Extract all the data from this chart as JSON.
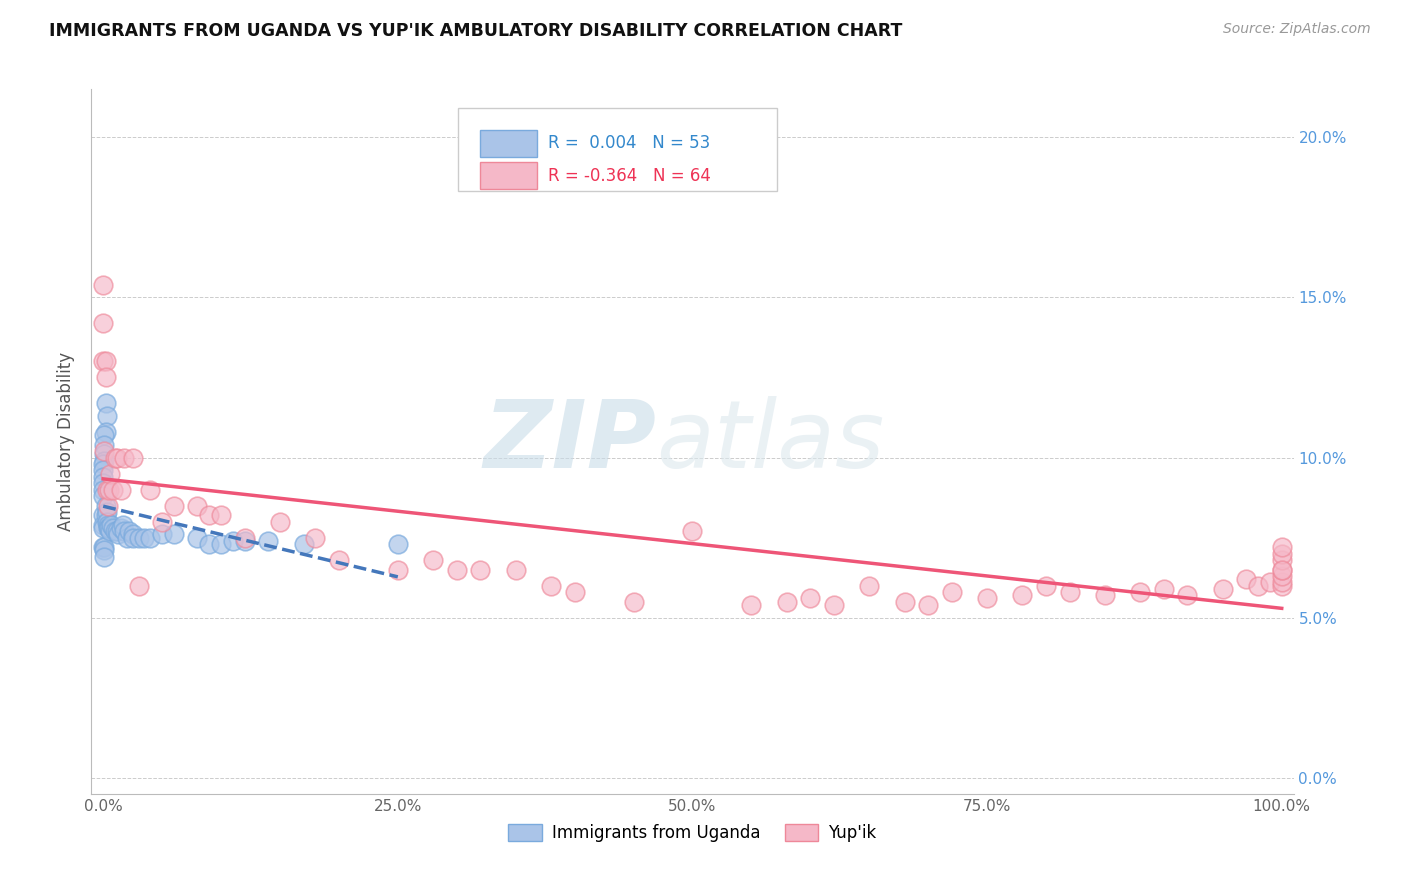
{
  "title": "IMMIGRANTS FROM UGANDA VS YUP'IK AMBULATORY DISABILITY CORRELATION CHART",
  "source": "Source: ZipAtlas.com",
  "ylabel": "Ambulatory Disability",
  "legend_labels": [
    "Immigrants from Uganda",
    "Yup'ik"
  ],
  "r_uganda": 0.004,
  "n_uganda": 53,
  "r_yupik": -0.364,
  "n_yupik": 64,
  "xlim": [
    -0.01,
    1.01
  ],
  "ylim": [
    -0.005,
    0.215
  ],
  "x_ticks": [
    0.0,
    0.25,
    0.5,
    0.75,
    1.0
  ],
  "x_tick_labels": [
    "0.0%",
    "25.0%",
    "50.0%",
    "75.0%",
    "100.0%"
  ],
  "y_ticks": [
    0.0,
    0.05,
    0.1,
    0.15,
    0.2
  ],
  "y_tick_labels_right": [
    "0.0%",
    "5.0%",
    "10.0%",
    "15.0%",
    "20.0%"
  ],
  "color_uganda_fill": "#aac4e8",
  "color_yupik_fill": "#f5b8c8",
  "color_uganda_edge": "#7aaadd",
  "color_yupik_edge": "#ee8899",
  "color_uganda_line": "#4477bb",
  "color_yupik_line": "#ee5577",
  "color_r_uganda": "#3388cc",
  "color_r_yupik": "#ee3355",
  "color_n_uganda": "#3388cc",
  "color_n_yupik": "#ee3355",
  "watermark_zip_color": "#d8e8f0",
  "watermark_atlas_color": "#e0e8ee",
  "scatter_uganda_x": [
    0.002,
    0.003,
    0.002,
    0.001,
    0.001,
    0.001,
    0.001,
    0.0,
    0.0,
    0.0,
    0.0,
    0.0,
    0.0,
    0.0,
    0.0,
    0.0,
    0.0,
    0.001,
    0.001,
    0.001,
    0.002,
    0.002,
    0.003,
    0.003,
    0.004,
    0.004,
    0.005,
    0.006,
    0.007,
    0.008,
    0.01,
    0.012,
    0.013,
    0.015,
    0.017,
    0.018,
    0.02,
    0.022,
    0.025,
    0.025,
    0.03,
    0.035,
    0.04,
    0.05,
    0.06,
    0.08,
    0.09,
    0.1,
    0.11,
    0.12,
    0.14,
    0.17,
    0.25
  ],
  "scatter_uganda_y": [
    0.117,
    0.113,
    0.108,
    0.107,
    0.104,
    0.101,
    0.099,
    0.098,
    0.096,
    0.094,
    0.092,
    0.09,
    0.088,
    0.082,
    0.079,
    0.078,
    0.072,
    0.072,
    0.071,
    0.069,
    0.085,
    0.082,
    0.083,
    0.08,
    0.079,
    0.078,
    0.078,
    0.077,
    0.079,
    0.078,
    0.077,
    0.077,
    0.076,
    0.078,
    0.079,
    0.077,
    0.075,
    0.077,
    0.076,
    0.075,
    0.075,
    0.075,
    0.075,
    0.076,
    0.076,
    0.075,
    0.073,
    0.073,
    0.074,
    0.074,
    0.074,
    0.073,
    0.073
  ],
  "scatter_yupik_x": [
    0.0,
    0.0,
    0.0,
    0.001,
    0.002,
    0.002,
    0.003,
    0.004,
    0.005,
    0.006,
    0.008,
    0.01,
    0.012,
    0.015,
    0.018,
    0.025,
    0.03,
    0.04,
    0.05,
    0.06,
    0.08,
    0.09,
    0.1,
    0.12,
    0.15,
    0.18,
    0.2,
    0.25,
    0.28,
    0.3,
    0.32,
    0.35,
    0.38,
    0.4,
    0.45,
    0.5,
    0.55,
    0.58,
    0.6,
    0.62,
    0.65,
    0.68,
    0.7,
    0.72,
    0.75,
    0.78,
    0.8,
    0.82,
    0.85,
    0.88,
    0.9,
    0.92,
    0.95,
    0.97,
    0.98,
    0.99,
    1.0,
    1.0,
    1.0,
    1.0,
    1.0,
    1.0,
    1.0,
    1.0
  ],
  "scatter_yupik_y": [
    0.154,
    0.142,
    0.13,
    0.102,
    0.13,
    0.125,
    0.09,
    0.085,
    0.09,
    0.095,
    0.09,
    0.1,
    0.1,
    0.09,
    0.1,
    0.1,
    0.06,
    0.09,
    0.08,
    0.085,
    0.085,
    0.082,
    0.082,
    0.075,
    0.08,
    0.075,
    0.068,
    0.065,
    0.068,
    0.065,
    0.065,
    0.065,
    0.06,
    0.058,
    0.055,
    0.077,
    0.054,
    0.055,
    0.056,
    0.054,
    0.06,
    0.055,
    0.054,
    0.058,
    0.056,
    0.057,
    0.06,
    0.058,
    0.057,
    0.058,
    0.059,
    0.057,
    0.059,
    0.062,
    0.06,
    0.061,
    0.06,
    0.061,
    0.063,
    0.065,
    0.068,
    0.07,
    0.072,
    0.065
  ]
}
